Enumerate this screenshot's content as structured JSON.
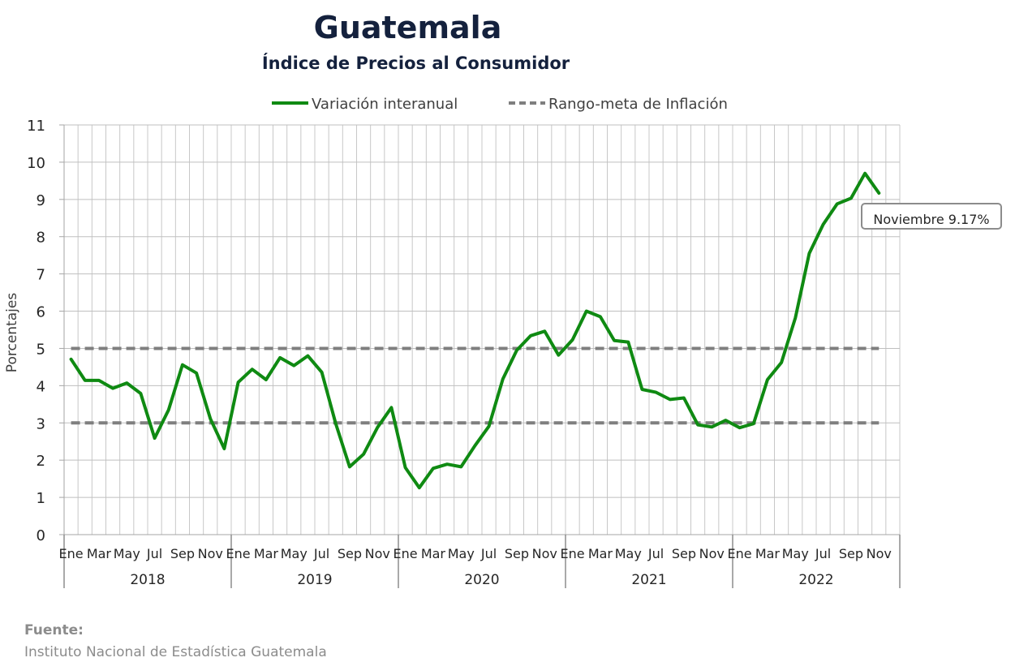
{
  "title": "Guatemala",
  "subtitle": "Índice de Precios al Consumidor",
  "source": {
    "label": "Fuente:",
    "text": "Instituto Nacional de Estadística Guatemala"
  },
  "chart_data": {
    "type": "line",
    "ylabel": "Porcentajes",
    "ylim": [
      0,
      11
    ],
    "yticks": [
      0,
      1,
      2,
      3,
      4,
      5,
      6,
      7,
      8,
      9,
      10,
      11
    ],
    "grid": true,
    "legend_position": "top",
    "month_tick_labels": [
      "Ene",
      "Mar",
      "May",
      "Jul",
      "Sep",
      "Nov"
    ],
    "years": [
      "2018",
      "2019",
      "2020",
      "2021",
      "2022"
    ],
    "series": [
      {
        "name": "Variación interanual",
        "color": "#0f8a12",
        "style": "solid",
        "values": [
          4.71,
          4.14,
          4.14,
          3.93,
          4.07,
          3.79,
          2.59,
          3.35,
          4.56,
          4.34,
          3.11,
          2.31,
          4.09,
          4.44,
          4.16,
          4.75,
          4.54,
          4.8,
          4.36,
          2.98,
          1.82,
          2.16,
          2.88,
          3.41,
          1.8,
          1.26,
          1.78,
          1.89,
          1.82,
          2.39,
          2.91,
          4.18,
          4.95,
          5.34,
          5.46,
          4.82,
          5.23,
          6.0,
          5.85,
          5.21,
          5.17,
          3.9,
          3.82,
          3.63,
          3.67,
          2.95,
          2.89,
          3.07,
          2.87,
          2.98,
          4.16,
          4.62,
          5.82,
          7.55,
          8.33,
          8.88,
          9.03,
          9.7,
          9.17
        ]
      },
      {
        "name": "Rango-meta de Inflación",
        "color": "#7f7f7f",
        "style": "dashed",
        "upper": 5,
        "lower": 3
      }
    ],
    "annotations": [
      {
        "text": "Noviembre 9.17%",
        "target": "last-point"
      }
    ]
  }
}
